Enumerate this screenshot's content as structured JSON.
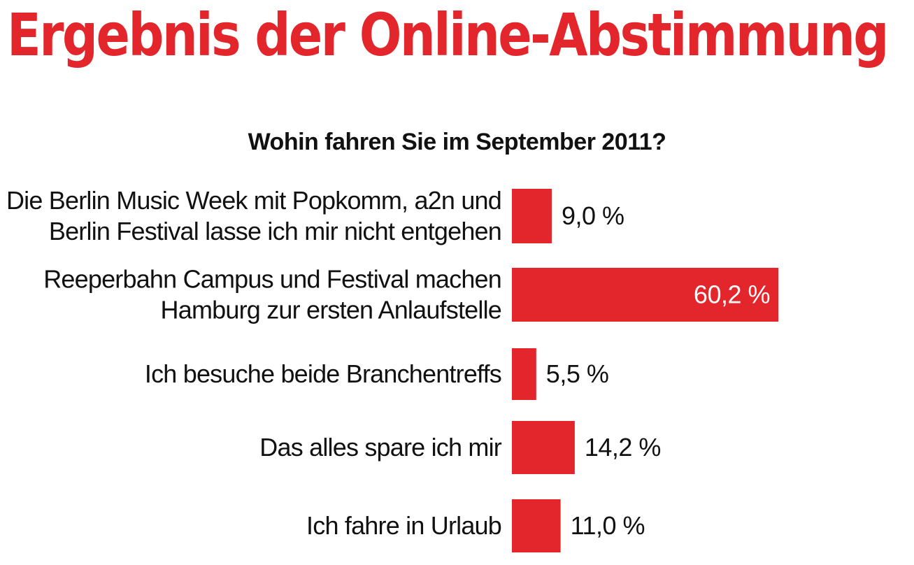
{
  "page": {
    "title": "Ergebnis der Online-Abstimmung"
  },
  "chart_data": {
    "type": "bar",
    "orientation": "horizontal",
    "title": "Ergebnis der Online-Abstimmung",
    "subtitle": "Wohin fahren Sie im September 2011?",
    "categories": [
      [
        "Die Berlin Music Week mit Popkomm, a2n und",
        "Berlin Festival lasse ich mir nicht entgehen"
      ],
      [
        "Reeperbahn Campus und Festival machen",
        "Hamburg zur ersten Anlaufstelle"
      ],
      [
        "Ich besuche beide Branchentreffs"
      ],
      [
        "Das alles spare ich mir"
      ],
      [
        "Ich fahre in Urlaub"
      ]
    ],
    "values": [
      9.0,
      60.2,
      5.5,
      14.2,
      11.0
    ],
    "value_labels": [
      "9,0 %",
      "60,2 %",
      "5,5 %",
      "14,2 %",
      "11,0 %"
    ],
    "xlim": [
      0,
      60.2
    ],
    "grid": false,
    "legend": "none",
    "bar_color": "#e3262b",
    "title_color": "#e3262b"
  }
}
